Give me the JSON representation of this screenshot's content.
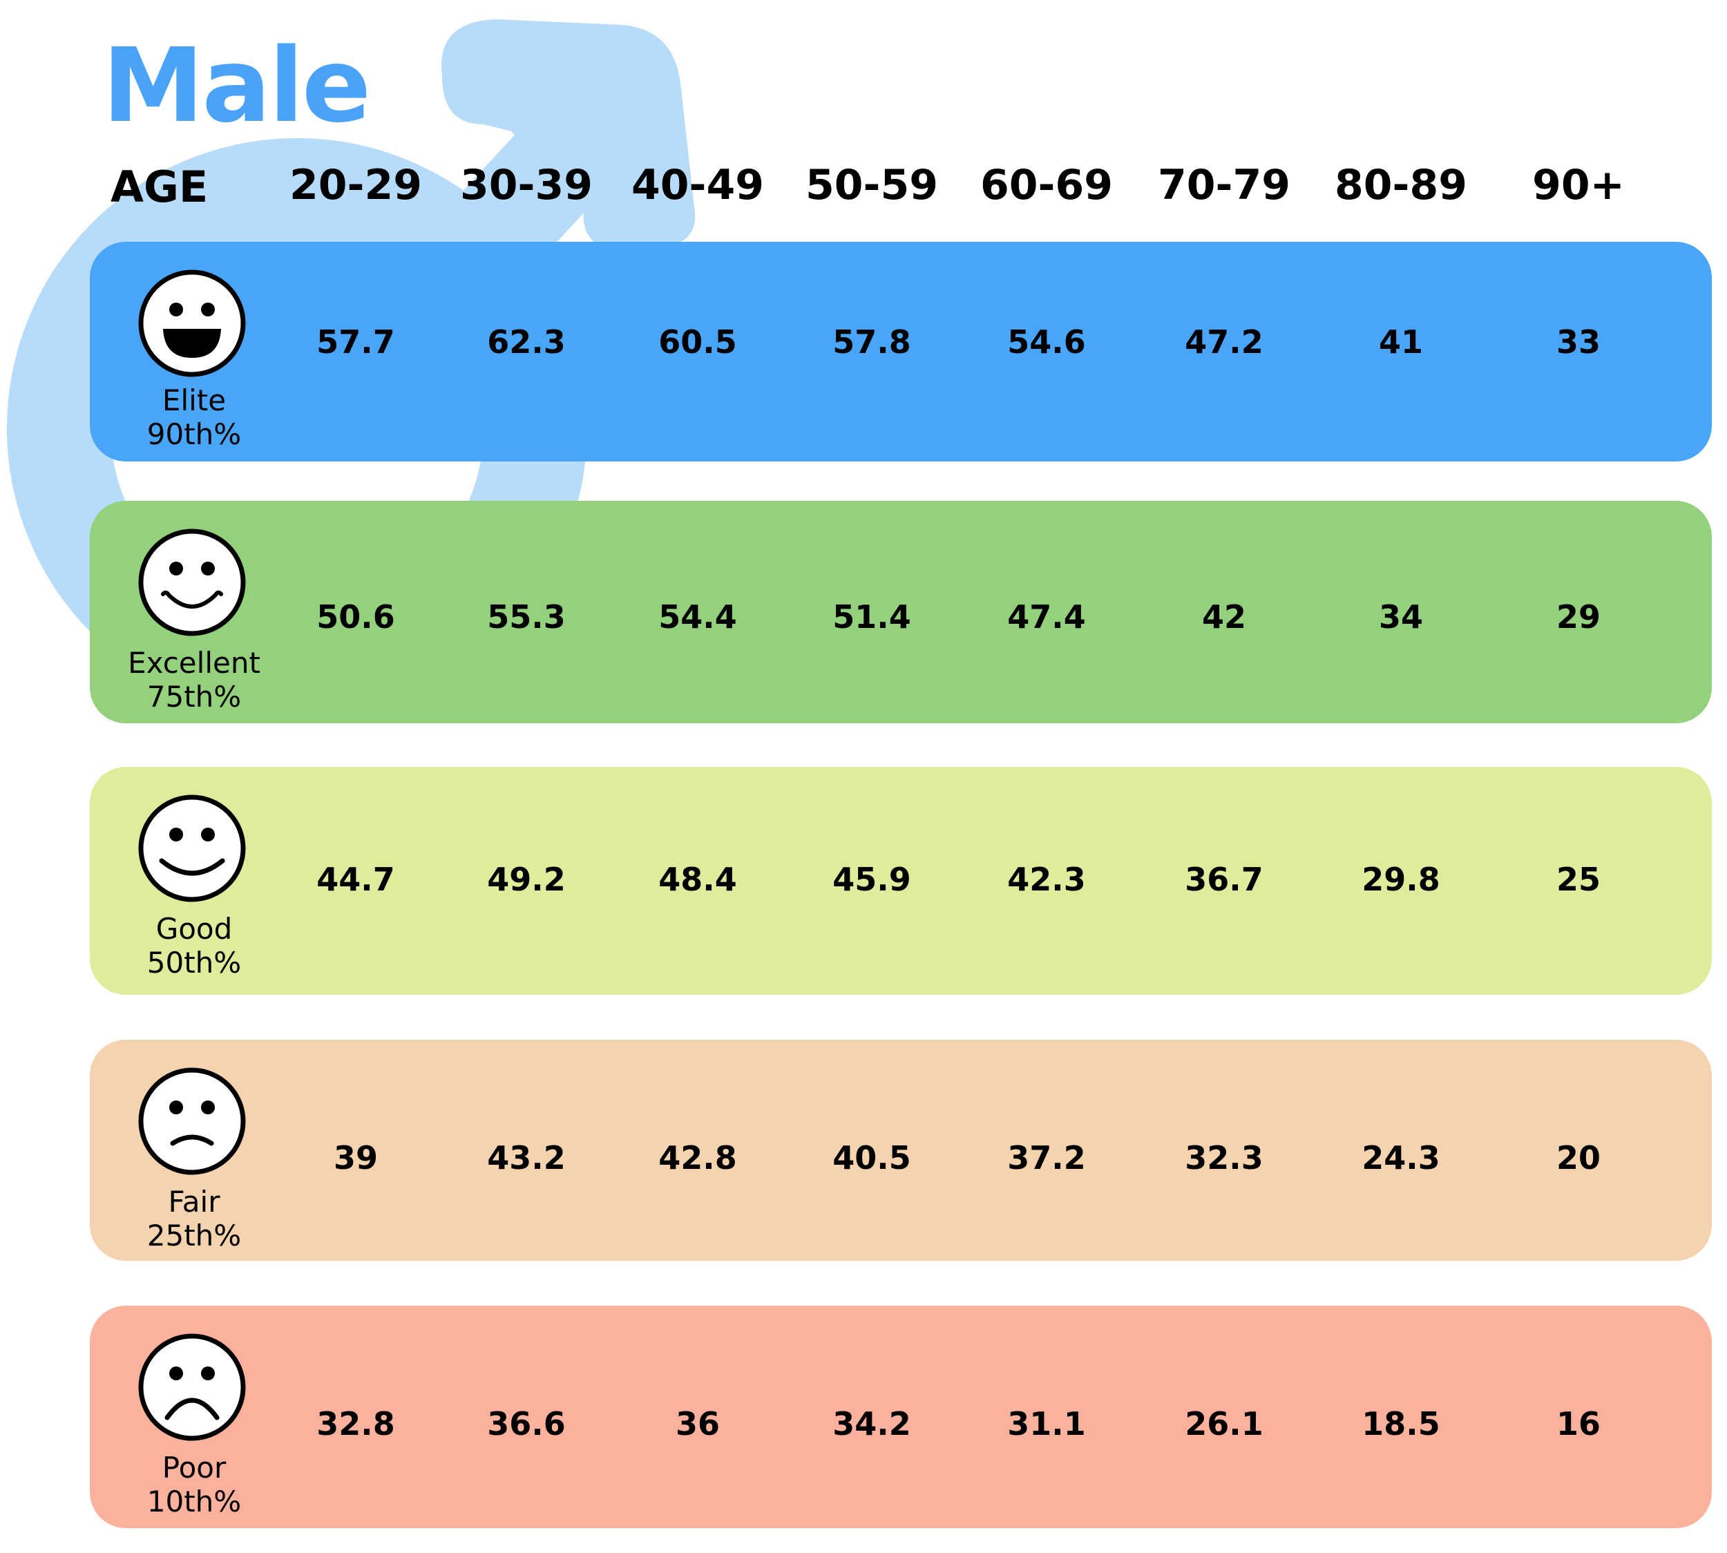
{
  "title": "Male",
  "age_header": "AGE",
  "colors": {
    "title": "#4AA3F8",
    "symbol": "#B6DCF9",
    "elite": "#48A5F8",
    "excellent": "#94D17C",
    "good": "#DFEC9C",
    "fair": "#F4D3AE",
    "poor": "#FCB19C"
  },
  "chart_data": {
    "type": "table",
    "title": "Male",
    "columns": [
      "20-29",
      "30-39",
      "40-49",
      "50-59",
      "60-69",
      "70-79",
      "80-89",
      "90+"
    ],
    "rows": [
      {
        "key": "elite",
        "label": "Elite",
        "percentile": "90th%",
        "face": "laughing-face-icon",
        "values": [
          "57.7",
          "62.3",
          "60.5",
          "57.8",
          "54.6",
          "47.2",
          "41",
          "33"
        ]
      },
      {
        "key": "excellent",
        "label": "Excellent",
        "percentile": "75th%",
        "face": "grinning-face-icon",
        "values": [
          "50.6",
          "55.3",
          "54.4",
          "51.4",
          "47.4",
          "42",
          "34",
          "29"
        ]
      },
      {
        "key": "good",
        "label": "Good",
        "percentile": "50th%",
        "face": "smiling-face-icon",
        "values": [
          "44.7",
          "49.2",
          "48.4",
          "45.9",
          "42.3",
          "36.7",
          "29.8",
          "25"
        ]
      },
      {
        "key": "fair",
        "label": "Fair",
        "percentile": "25th%",
        "face": "frowning-face-icon",
        "values": [
          "39",
          "43.2",
          "42.8",
          "40.5",
          "37.2",
          "32.3",
          "24.3",
          "20"
        ]
      },
      {
        "key": "poor",
        "label": "Poor",
        "percentile": "10th%",
        "face": "sad-face-icon",
        "values": [
          "32.8",
          "36.6",
          "36",
          "34.2",
          "31.1",
          "26.1",
          "18.5",
          "16"
        ]
      }
    ]
  }
}
